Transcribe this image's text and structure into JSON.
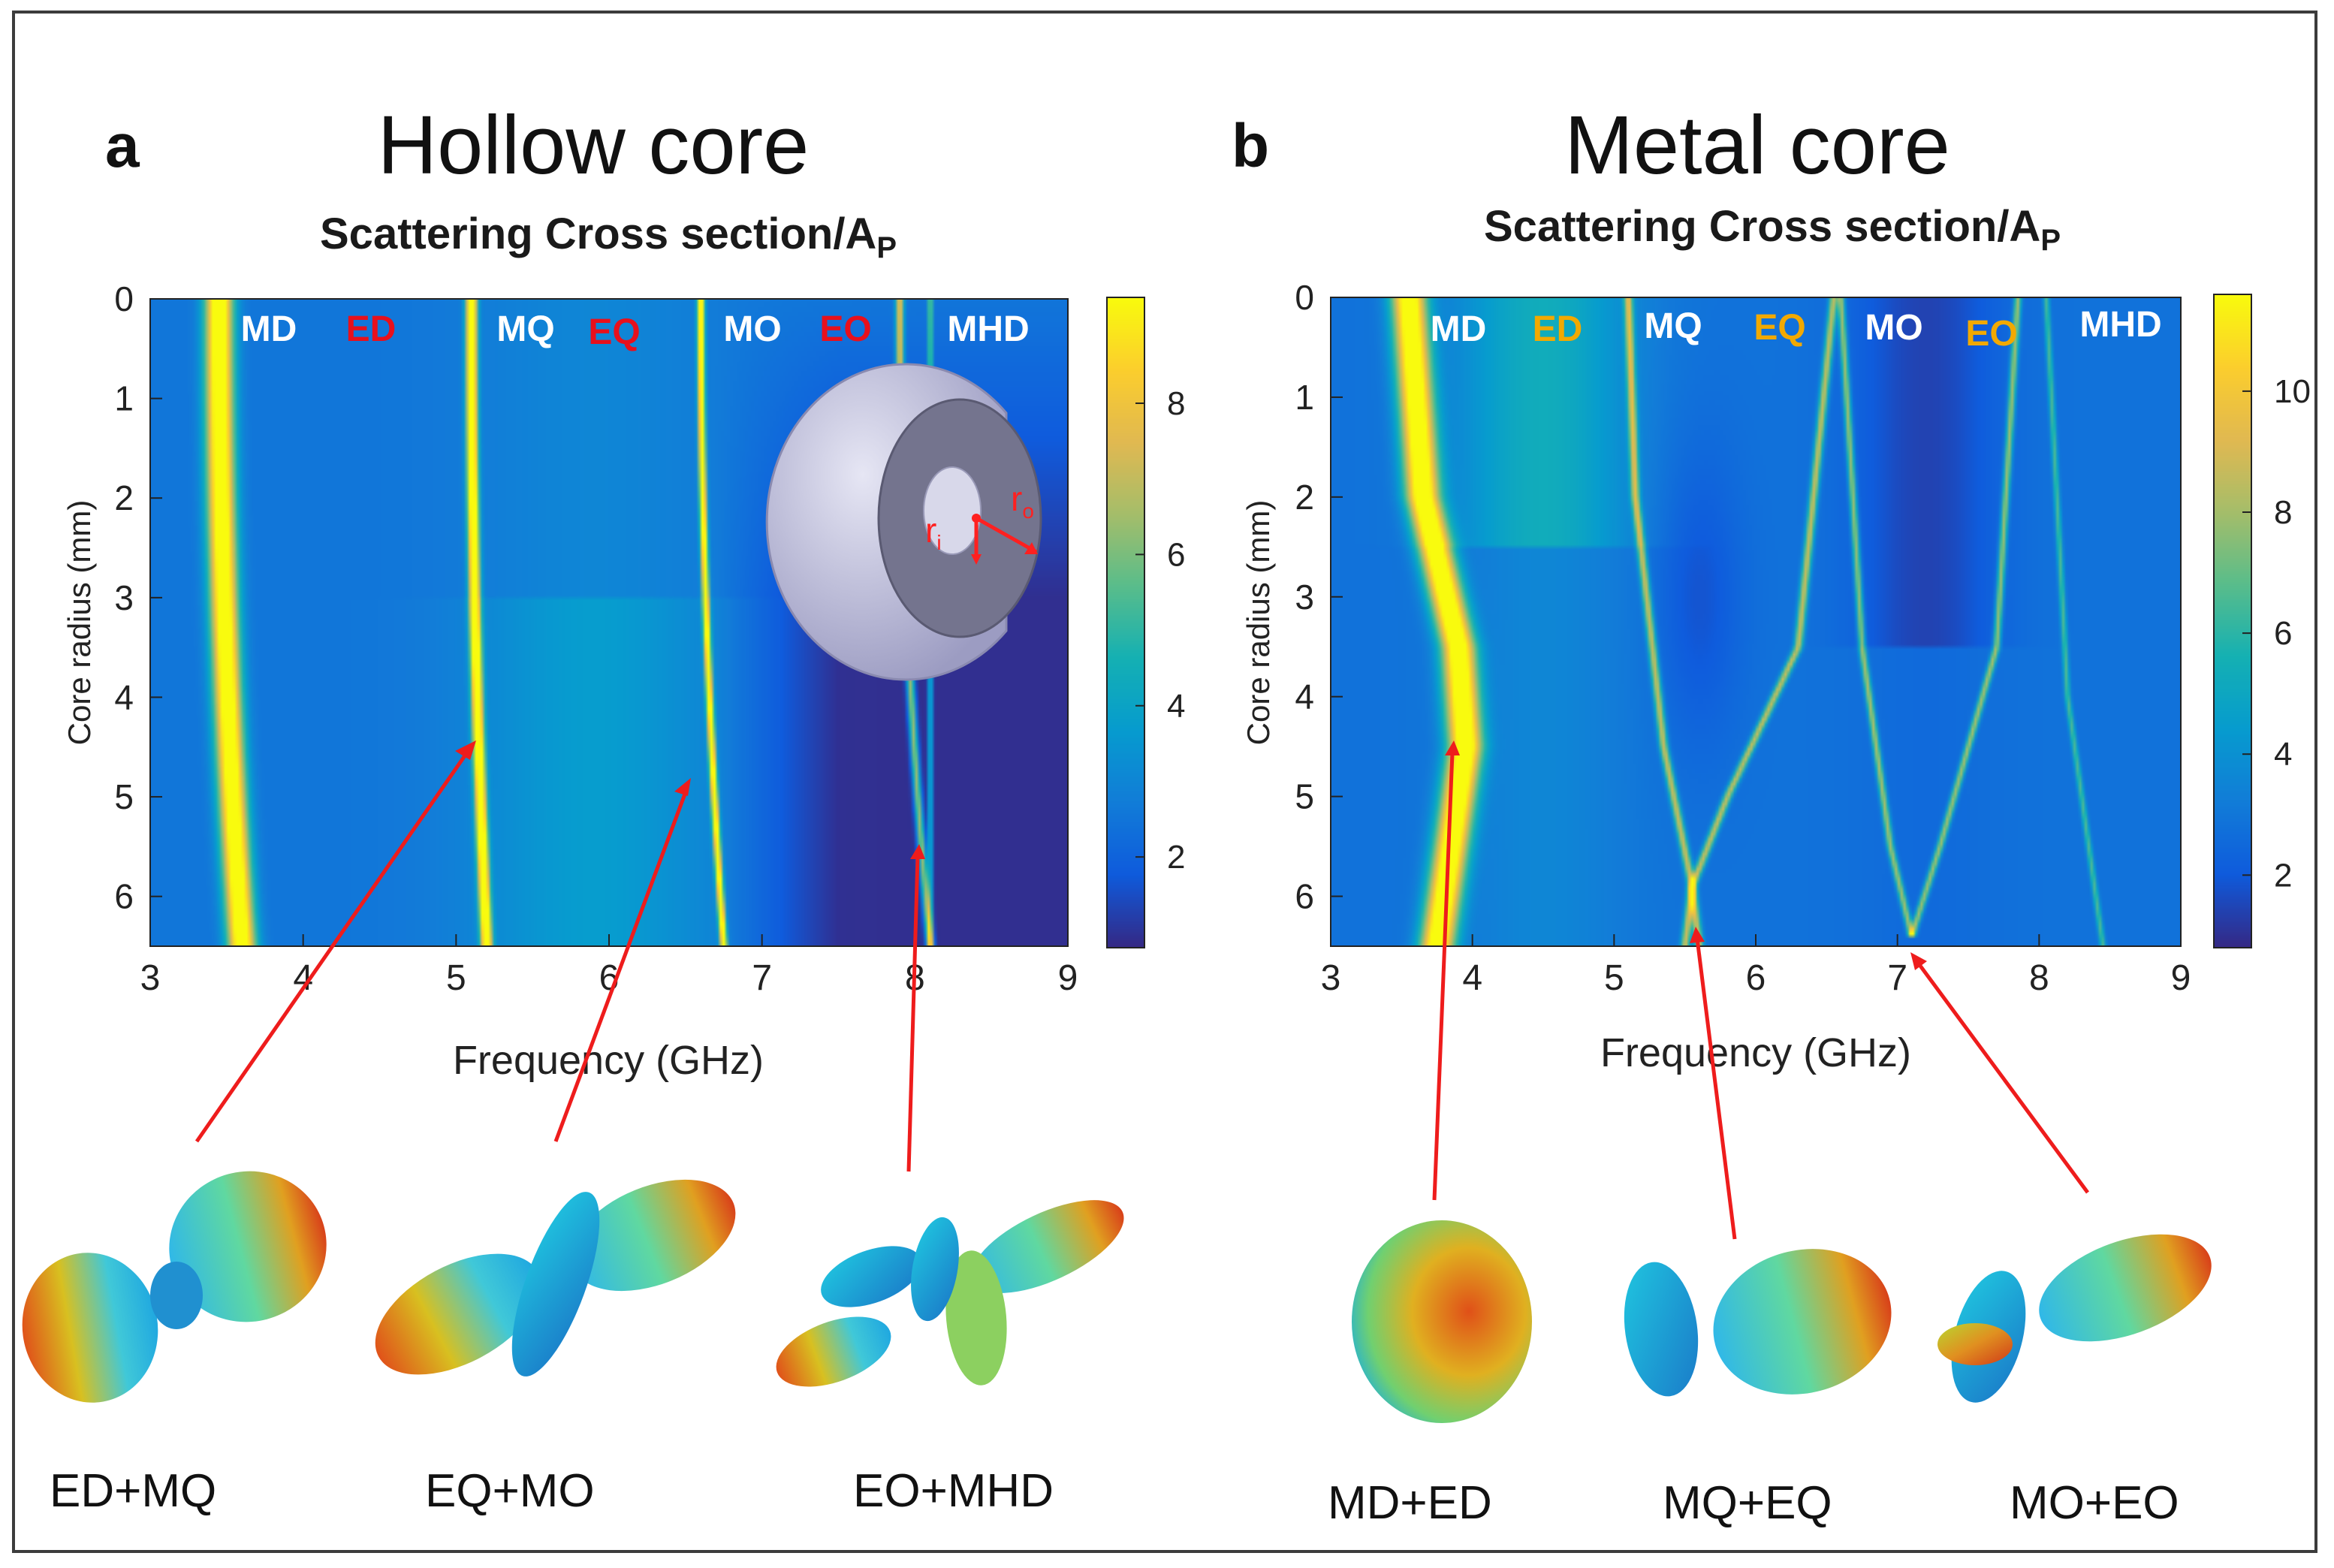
{
  "figure": {
    "panel_a": {
      "letter": "a",
      "title": "Hollow core",
      "subtitle_main": "Scattering Cross section/A",
      "subtitle_sub": "P",
      "mode_labels": [
        {
          "text": "MD",
          "color": "#ffffff"
        },
        {
          "text": "ED",
          "color": "#e8101c"
        },
        {
          "text": "MQ",
          "color": "#ffffff"
        },
        {
          "text": "EQ",
          "color": "#e8101c"
        },
        {
          "text": "MO",
          "color": "#ffffff"
        },
        {
          "text": "EO",
          "color": "#e8101c"
        },
        {
          "text": "MHD",
          "color": "#ffffff"
        }
      ],
      "inset_labels": {
        "inner": "r",
        "inner_sub": "i",
        "outer": "r",
        "outer_sub": "o"
      },
      "combos": [
        "ED+MQ",
        "EQ+MO",
        "EO+MHD"
      ]
    },
    "panel_b": {
      "letter": "b",
      "title": "Metal core",
      "subtitle_main": "Scattering Cross section/A",
      "subtitle_sub": "P",
      "mode_labels": [
        {
          "text": "MD",
          "color": "#ffffff"
        },
        {
          "text": "ED",
          "color": "#f2a900"
        },
        {
          "text": "MQ",
          "color": "#ffffff"
        },
        {
          "text": "EQ",
          "color": "#f2a900"
        },
        {
          "text": "MO",
          "color": "#ffffff"
        },
        {
          "text": "EO",
          "color": "#f2a900"
        },
        {
          "text": "MHD",
          "color": "#ffffff"
        }
      ],
      "combos": [
        "MD+ED",
        "MQ+EQ",
        "MO+EO"
      ]
    }
  },
  "chart_data": [
    {
      "type": "heatmap",
      "panel": "a",
      "title": "Scattering Cross section/A_P",
      "xlabel": "Frequency (GHz)",
      "ylabel": "Core radius (mm)",
      "xlim": [
        3,
        9
      ],
      "ylim": [
        0,
        6.5
      ],
      "xticks": [
        "3",
        "4",
        "5",
        "6",
        "7",
        "8",
        "9"
      ],
      "yticks": [
        "0",
        "1",
        "2",
        "3",
        "4",
        "5",
        "6"
      ],
      "colorbar": {
        "min": 0.8,
        "max": 9.4,
        "ticks": [
          "2",
          "4",
          "6",
          "8"
        ]
      },
      "background": 2.5,
      "dark_region": {
        "from_freq": 6.7,
        "min_value": 0.9
      },
      "resonances": [
        {
          "name": "MD",
          "freq_at_r0": 3.45,
          "freq_at_rmax": 3.6,
          "peak": 8.5,
          "width": 0.09
        },
        {
          "name": "MQ",
          "freq_at_r0": 5.1,
          "freq_at_rmax": 5.2,
          "peak": 9.2,
          "width": 0.035
        },
        {
          "name": "MO",
          "freq_at_r0": 6.6,
          "freq_at_rmax": 6.75,
          "peak": 8.0,
          "width": 0.022
        },
        {
          "name": "MHD",
          "freq_at_r0": 7.9,
          "freq_at_rmax": 8.1,
          "peak": 5.5,
          "width": 0.025
        },
        {
          "name": "MHD-line",
          "freq_at_r0": 8.1,
          "freq_at_rmax": 8.1,
          "peak": 4.0,
          "width": 0.015
        }
      ]
    },
    {
      "type": "heatmap",
      "panel": "b",
      "title": "Scattering Cross section/A_P",
      "xlabel": "Frequency (GHz)",
      "ylabel": "Core radius (mm)",
      "xlim": [
        3,
        9
      ],
      "ylim": [
        0,
        6.5
      ],
      "xticks": [
        "3",
        "4",
        "5",
        "6",
        "7",
        "8",
        "9"
      ],
      "yticks": [
        "0",
        "1",
        "2",
        "3",
        "4",
        "5",
        "6"
      ],
      "colorbar": {
        "min": 0.8,
        "max": 11.6,
        "ticks": [
          "2",
          "4",
          "6",
          "8",
          "10"
        ]
      },
      "background": 2.8,
      "crossings": [
        {
          "label": "MQ+EQ",
          "freq": 5.55,
          "radius": 5.9
        },
        {
          "label": "MO+EO",
          "freq": 7.1,
          "radius": 6.4
        }
      ],
      "resonances": [
        {
          "name": "MD/ED",
          "points": [
            [
              0,
              3.55
            ],
            [
              2,
              3.65
            ],
            [
              3.5,
              3.9
            ],
            [
              4.5,
              3.95
            ],
            [
              6.5,
              3.75
            ]
          ],
          "peak": 10.5,
          "width": 0.12
        },
        {
          "name": "MQ",
          "points": [
            [
              0,
              5.1
            ],
            [
              2,
              5.15
            ],
            [
              4.5,
              5.35
            ],
            [
              5.9,
              5.55
            ],
            [
              6.5,
              5.6
            ]
          ],
          "peak": 6.0,
          "width": 0.03
        },
        {
          "name": "EQ",
          "points": [
            [
              0,
              6.55
            ],
            [
              3.5,
              6.3
            ],
            [
              5.0,
              5.8
            ],
            [
              5.9,
              5.55
            ],
            [
              6.5,
              5.5
            ]
          ],
          "peak": 6.0,
          "width": 0.03
        },
        {
          "name": "MO",
          "points": [
            [
              0,
              6.6
            ],
            [
              3.5,
              6.75
            ],
            [
              5.5,
              6.95
            ],
            [
              6.4,
              7.1
            ]
          ],
          "peak": 5.5,
          "width": 0.025
        },
        {
          "name": "EO",
          "points": [
            [
              0,
              7.85
            ],
            [
              3.5,
              7.7
            ],
            [
              5.5,
              7.3
            ],
            [
              6.4,
              7.1
            ]
          ],
          "peak": 5.5,
          "width": 0.025
        },
        {
          "name": "MHD",
          "points": [
            [
              0,
              8.05
            ],
            [
              4.0,
              8.2
            ],
            [
              6.5,
              8.45
            ]
          ],
          "peak": 3.8,
          "width": 0.02
        }
      ]
    }
  ]
}
